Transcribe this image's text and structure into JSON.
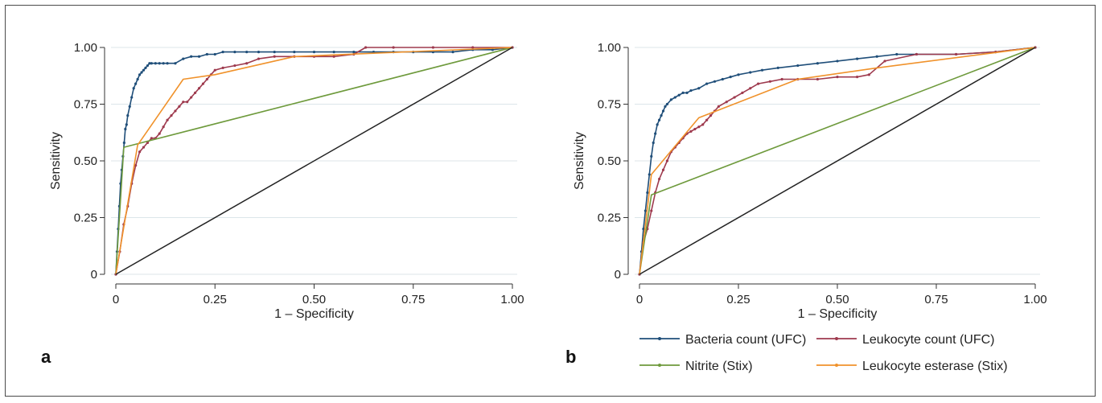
{
  "figure": {
    "panels": [
      {
        "letter": "a"
      },
      {
        "letter": "b"
      }
    ]
  },
  "legend": {
    "entries": [
      {
        "label": "Bacteria count (UFC)",
        "color": "#1f4e79"
      },
      {
        "label": "Leukocyte count (UFC)",
        "color": "#9e3a4e"
      },
      {
        "label": "Nitrite (Stix)",
        "color": "#6e9a3c"
      },
      {
        "label": "Leukocyte esterase (Stix)",
        "color": "#f0922b"
      }
    ]
  },
  "chart_data": [
    {
      "type": "line",
      "panel": "a",
      "xlabel": "1 – Specificity",
      "ylabel": "Sensitivity",
      "xlim": [
        0,
        1
      ],
      "ylim": [
        0,
        1
      ],
      "xticks": [
        0,
        0.25,
        0.5,
        0.75,
        1.0
      ],
      "xtick_labels": [
        "0",
        "0.25",
        "0.50",
        "0.75",
        "1.00"
      ],
      "yticks": [
        0,
        0.25,
        0.5,
        0.75,
        1.0
      ],
      "ytick_labels": [
        "0",
        "0.25",
        "0.50",
        "0.75",
        "1.00"
      ],
      "grid": "horizontal",
      "series": [
        {
          "name": "Bacteria count (UFC)",
          "color": "#1f4e79",
          "markers": true,
          "x": [
            0,
            0.003,
            0.006,
            0.009,
            0.012,
            0.015,
            0.018,
            0.021,
            0.024,
            0.027,
            0.03,
            0.035,
            0.04,
            0.045,
            0.05,
            0.055,
            0.06,
            0.065,
            0.07,
            0.075,
            0.08,
            0.085,
            0.09,
            0.1,
            0.11,
            0.12,
            0.13,
            0.15,
            0.17,
            0.19,
            0.21,
            0.23,
            0.25,
            0.27,
            0.3,
            0.33,
            0.36,
            0.4,
            0.45,
            0.5,
            0.55,
            0.6,
            0.65,
            0.7,
            0.75,
            0.8,
            0.85,
            0.9,
            0.95,
            1.0
          ],
          "y": [
            0,
            0.1,
            0.2,
            0.3,
            0.4,
            0.46,
            0.52,
            0.58,
            0.64,
            0.66,
            0.7,
            0.74,
            0.78,
            0.82,
            0.84,
            0.86,
            0.88,
            0.89,
            0.9,
            0.91,
            0.92,
            0.93,
            0.93,
            0.93,
            0.93,
            0.93,
            0.93,
            0.93,
            0.95,
            0.96,
            0.96,
            0.97,
            0.97,
            0.98,
            0.98,
            0.98,
            0.98,
            0.98,
            0.98,
            0.98,
            0.98,
            0.98,
            0.98,
            0.98,
            0.98,
            0.98,
            0.98,
            0.99,
            0.99,
            1.0
          ]
        },
        {
          "name": "Leukocyte count (UFC)",
          "color": "#9e3a4e",
          "markers": true,
          "x": [
            0,
            0.01,
            0.02,
            0.03,
            0.04,
            0.05,
            0.06,
            0.07,
            0.08,
            0.09,
            0.1,
            0.11,
            0.12,
            0.13,
            0.14,
            0.15,
            0.16,
            0.17,
            0.18,
            0.19,
            0.2,
            0.21,
            0.22,
            0.23,
            0.24,
            0.25,
            0.27,
            0.3,
            0.33,
            0.36,
            0.4,
            0.45,
            0.5,
            0.55,
            0.6,
            0.63,
            0.7,
            0.8,
            0.9,
            1.0
          ],
          "y": [
            0,
            0.1,
            0.22,
            0.3,
            0.4,
            0.48,
            0.54,
            0.56,
            0.58,
            0.6,
            0.6,
            0.62,
            0.65,
            0.68,
            0.7,
            0.72,
            0.74,
            0.76,
            0.76,
            0.78,
            0.8,
            0.82,
            0.84,
            0.86,
            0.88,
            0.9,
            0.91,
            0.92,
            0.93,
            0.95,
            0.96,
            0.96,
            0.96,
            0.96,
            0.97,
            1.0,
            1.0,
            1.0,
            1.0,
            1.0
          ]
        },
        {
          "name": "Nitrite (Stix)",
          "color": "#6e9a3c",
          "markers": false,
          "x": [
            0,
            0.02,
            1.0
          ],
          "y": [
            0,
            0.56,
            1.0
          ]
        },
        {
          "name": "Leukocyte esterase (Stix)",
          "color": "#f0922b",
          "markers": false,
          "x": [
            0,
            0.055,
            0.17,
            0.25,
            0.45,
            1.0
          ],
          "y": [
            0,
            0.57,
            0.86,
            0.88,
            0.96,
            1.0
          ]
        },
        {
          "name": "",
          "color": "#222222",
          "markers": false,
          "x": [
            0,
            1.0
          ],
          "y": [
            0,
            1.0
          ]
        }
      ]
    },
    {
      "type": "line",
      "panel": "b",
      "xlabel": "1 – Specificity",
      "ylabel": "Sensitivity",
      "xlim": [
        0,
        1
      ],
      "ylim": [
        0,
        1
      ],
      "xticks": [
        0,
        0.25,
        0.5,
        0.75,
        1.0
      ],
      "xtick_labels": [
        "0",
        "0.25",
        "0.50",
        "0.75",
        "1.00"
      ],
      "yticks": [
        0,
        0.25,
        0.5,
        0.75,
        1.0
      ],
      "ytick_labels": [
        "0",
        "0.25",
        "0.50",
        "0.75",
        "1.00"
      ],
      "grid": "horizontal",
      "series": [
        {
          "name": "Bacteria count (UFC)",
          "color": "#1f4e79",
          "markers": true,
          "x": [
            0,
            0.005,
            0.01,
            0.015,
            0.02,
            0.025,
            0.03,
            0.035,
            0.04,
            0.045,
            0.05,
            0.055,
            0.06,
            0.065,
            0.07,
            0.08,
            0.09,
            0.1,
            0.11,
            0.12,
            0.13,
            0.15,
            0.17,
            0.19,
            0.21,
            0.23,
            0.25,
            0.28,
            0.31,
            0.35,
            0.4,
            0.45,
            0.5,
            0.55,
            0.6,
            0.65,
            0.7,
            0.8,
            0.9,
            1.0
          ],
          "y": [
            0,
            0.1,
            0.2,
            0.28,
            0.36,
            0.44,
            0.52,
            0.58,
            0.62,
            0.66,
            0.68,
            0.7,
            0.72,
            0.74,
            0.75,
            0.77,
            0.78,
            0.79,
            0.8,
            0.8,
            0.81,
            0.82,
            0.84,
            0.85,
            0.86,
            0.87,
            0.88,
            0.89,
            0.9,
            0.91,
            0.92,
            0.93,
            0.94,
            0.95,
            0.96,
            0.97,
            0.97,
            0.97,
            0.98,
            1.0
          ]
        },
        {
          "name": "Leukocyte count (UFC)",
          "color": "#9e3a4e",
          "markers": true,
          "x": [
            0,
            0.01,
            0.02,
            0.03,
            0.04,
            0.05,
            0.06,
            0.07,
            0.08,
            0.09,
            0.1,
            0.11,
            0.12,
            0.13,
            0.14,
            0.15,
            0.16,
            0.17,
            0.18,
            0.19,
            0.2,
            0.22,
            0.24,
            0.26,
            0.28,
            0.3,
            0.33,
            0.36,
            0.4,
            0.45,
            0.5,
            0.55,
            0.58,
            0.62,
            0.7,
            0.8,
            0.9,
            1.0
          ],
          "y": [
            0,
            0.14,
            0.2,
            0.28,
            0.36,
            0.42,
            0.46,
            0.5,
            0.54,
            0.56,
            0.58,
            0.6,
            0.62,
            0.63,
            0.64,
            0.65,
            0.66,
            0.68,
            0.7,
            0.72,
            0.74,
            0.76,
            0.78,
            0.8,
            0.82,
            0.84,
            0.85,
            0.86,
            0.86,
            0.86,
            0.87,
            0.87,
            0.88,
            0.94,
            0.97,
            0.97,
            0.98,
            1.0
          ]
        },
        {
          "name": "Nitrite (Stix)",
          "color": "#6e9a3c",
          "markers": false,
          "x": [
            0,
            0.03,
            1.0
          ],
          "y": [
            0,
            0.35,
            1.0
          ]
        },
        {
          "name": "Leukocyte esterase (Stix)",
          "color": "#f0922b",
          "markers": false,
          "x": [
            0,
            0.03,
            0.15,
            0.4,
            0.6,
            1.0
          ],
          "y": [
            0,
            0.44,
            0.69,
            0.86,
            0.91,
            1.0
          ]
        },
        {
          "name": "",
          "color": "#222222",
          "markers": false,
          "x": [
            0,
            1.0
          ],
          "y": [
            0,
            1.0
          ]
        }
      ]
    }
  ]
}
